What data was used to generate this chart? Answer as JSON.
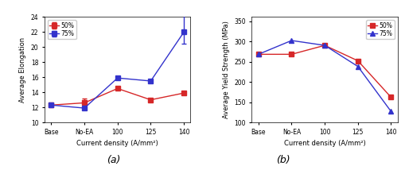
{
  "x_labels": [
    "Base",
    "No-EA",
    "100",
    "125",
    "140"
  ],
  "x_positions": [
    0,
    1,
    2,
    3,
    4
  ],
  "elongation_50": [
    12.3,
    12.6,
    14.5,
    13.0,
    13.9
  ],
  "elongation_75": [
    12.3,
    11.9,
    15.9,
    15.5,
    22.0
  ],
  "elongation_50_yerr": [
    0.0,
    0.6,
    0.0,
    0.0,
    0.0
  ],
  "elongation_75_yerr_lower": [
    0.0,
    0.0,
    0.0,
    0.0,
    1.5
  ],
  "elongation_75_yerr_upper": [
    0.0,
    0.0,
    0.0,
    0.0,
    2.5
  ],
  "elongation_ylim": [
    10,
    24
  ],
  "elongation_yticks": [
    10,
    12,
    14,
    16,
    18,
    20,
    22,
    24
  ],
  "elongation_ylabel": "Average Elongation",
  "elongation_xlabel": "Current density (A/mm²)",
  "elongation_label_a": "(a)",
  "stress_50": [
    268,
    268,
    290,
    252,
    162
  ],
  "stress_75": [
    268,
    302,
    290,
    238,
    127
  ],
  "stress_ylim": [
    100,
    360
  ],
  "stress_yticks": [
    100,
    150,
    200,
    250,
    300,
    350
  ],
  "stress_ylabel": "Average Yield Strength (MPa)",
  "stress_xlabel": "Current density (A/mm²)",
  "stress_label_b": "(b)",
  "color_50": "#d62728",
  "color_75": "#3333cc",
  "legend_50": "50%",
  "legend_75": "75%",
  "marker_50": "s",
  "marker_75_a": "s",
  "marker_75_b": "^",
  "linewidth": 1.0,
  "markersize": 4,
  "background_color": "#ffffff"
}
